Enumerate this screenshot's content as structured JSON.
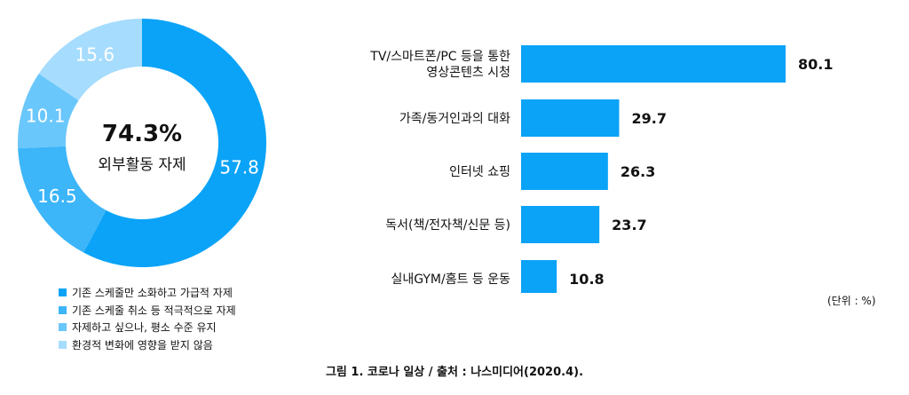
{
  "chart_data": [
    {
      "type": "pie",
      "center_value": "74.3%",
      "center_label": "외부활동 자제",
      "slices": [
        {
          "label": "기존 스케줄만 소화하고 가급적 자제",
          "value": 57.8,
          "display": "57.8",
          "color": "#0aa3f7"
        },
        {
          "label": "기존 스케줄 취소 등 적극적으로 자제",
          "value": 16.5,
          "display": "16.5",
          "color": "#3cb5f9"
        },
        {
          "label": "자제하고 싶으나, 평소 수준 유지",
          "value": 10.1,
          "display": "10.1",
          "color": "#6ac7fb"
        },
        {
          "label": "환경적 변화에 영향을 받지 않음",
          "value": 15.6,
          "display": "15.6",
          "color": "#a6dcfd"
        }
      ]
    },
    {
      "type": "bar",
      "categories": [
        [
          "TV/스마트폰/PC 등을 통한",
          "영상콘텐츠 시청"
        ],
        [
          "가족/동거인과의 대화"
        ],
        [
          "인터넷 쇼핑"
        ],
        [
          "독서(책/전자책/신문 등)"
        ],
        [
          "실내GYM/홈트 등 운동"
        ]
      ],
      "values": [
        80.1,
        29.7,
        26.3,
        23.7,
        10.8
      ],
      "labels": [
        "80.1",
        "29.7",
        "26.3",
        "23.7",
        "10.8"
      ],
      "color": "#0aa3f7",
      "unit_label": "(단위 : %)"
    }
  ],
  "caption": "그림 1. 코로나 일상 / 출처 : 나스미디어(2020.4)."
}
